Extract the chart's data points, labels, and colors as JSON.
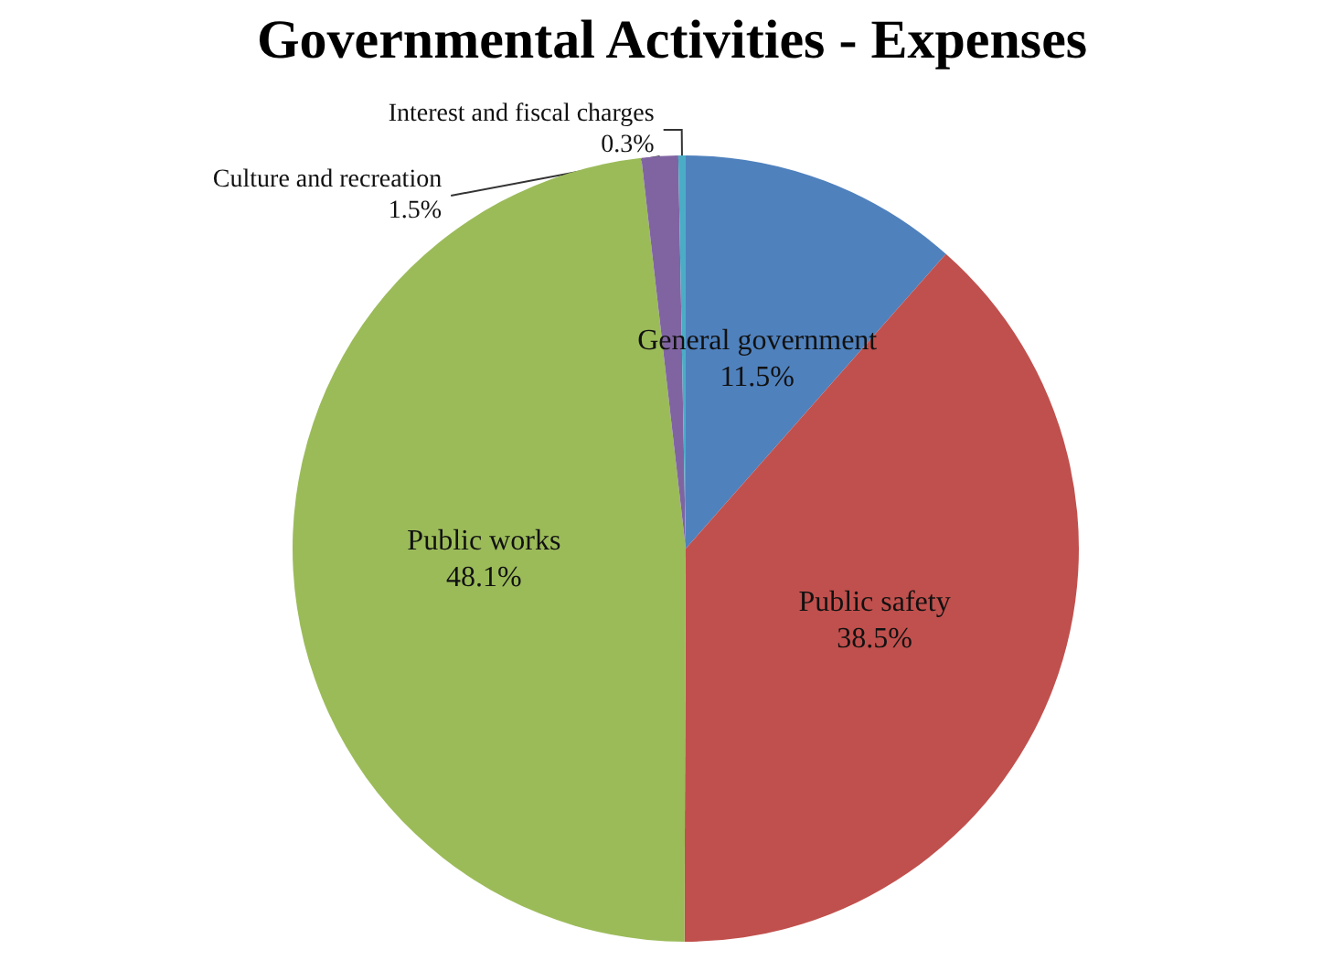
{
  "chart_data": {
    "type": "pie",
    "title": "Governmental Activities - Expenses",
    "categories": [
      "General government",
      "Public safety",
      "Public works",
      "Culture and recreation",
      "Interest and fiscal charges"
    ],
    "values": [
      11.5,
      38.5,
      48.1,
      1.5,
      0.3
    ],
    "value_labels": [
      "11.5%",
      "38.5%",
      "48.1%",
      "1.5%",
      "0.3%"
    ],
    "colors": [
      "#4f81bd",
      "#c0504d",
      "#9bbb59",
      "#8064a2",
      "#4bacc6"
    ],
    "legend": false
  }
}
